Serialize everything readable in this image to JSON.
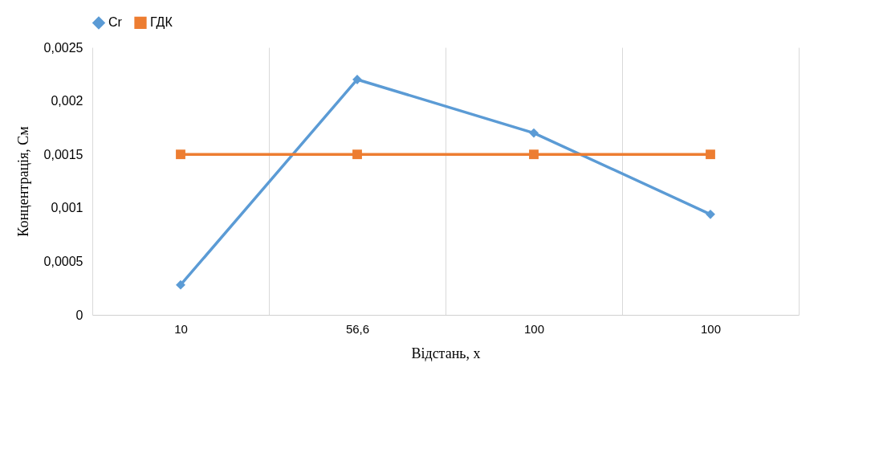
{
  "chart_data": {
    "type": "line",
    "categories": [
      "10",
      "56,6",
      "100",
      "100"
    ],
    "xlabel": "Відстань, x",
    "ylabel": "Концентрація, Cм",
    "ylim": [
      0,
      0.0025
    ],
    "yticks": [
      0,
      {
        "value": 0.0005,
        "label": "0,0005"
      },
      {
        "value": 0.001,
        "label": "0,001"
      },
      {
        "value": 0.0015,
        "label": "0,0015"
      },
      {
        "value": 0.002,
        "label": "0,002"
      },
      {
        "value": 0.0025,
        "label": "0,0025"
      }
    ],
    "grid": "x",
    "legend": "top",
    "line_style": "solid",
    "series": [
      {
        "name": "Cr",
        "color": "#5b9bd5",
        "marker": "diamond",
        "values": [
          0.00028,
          0.0022,
          0.0017,
          0.00094
        ]
      },
      {
        "name": "ГДК",
        "color": "#ed7d31",
        "marker": "square",
        "values": [
          0.0015,
          0.0015,
          0.0015,
          0.0015
        ]
      }
    ]
  }
}
